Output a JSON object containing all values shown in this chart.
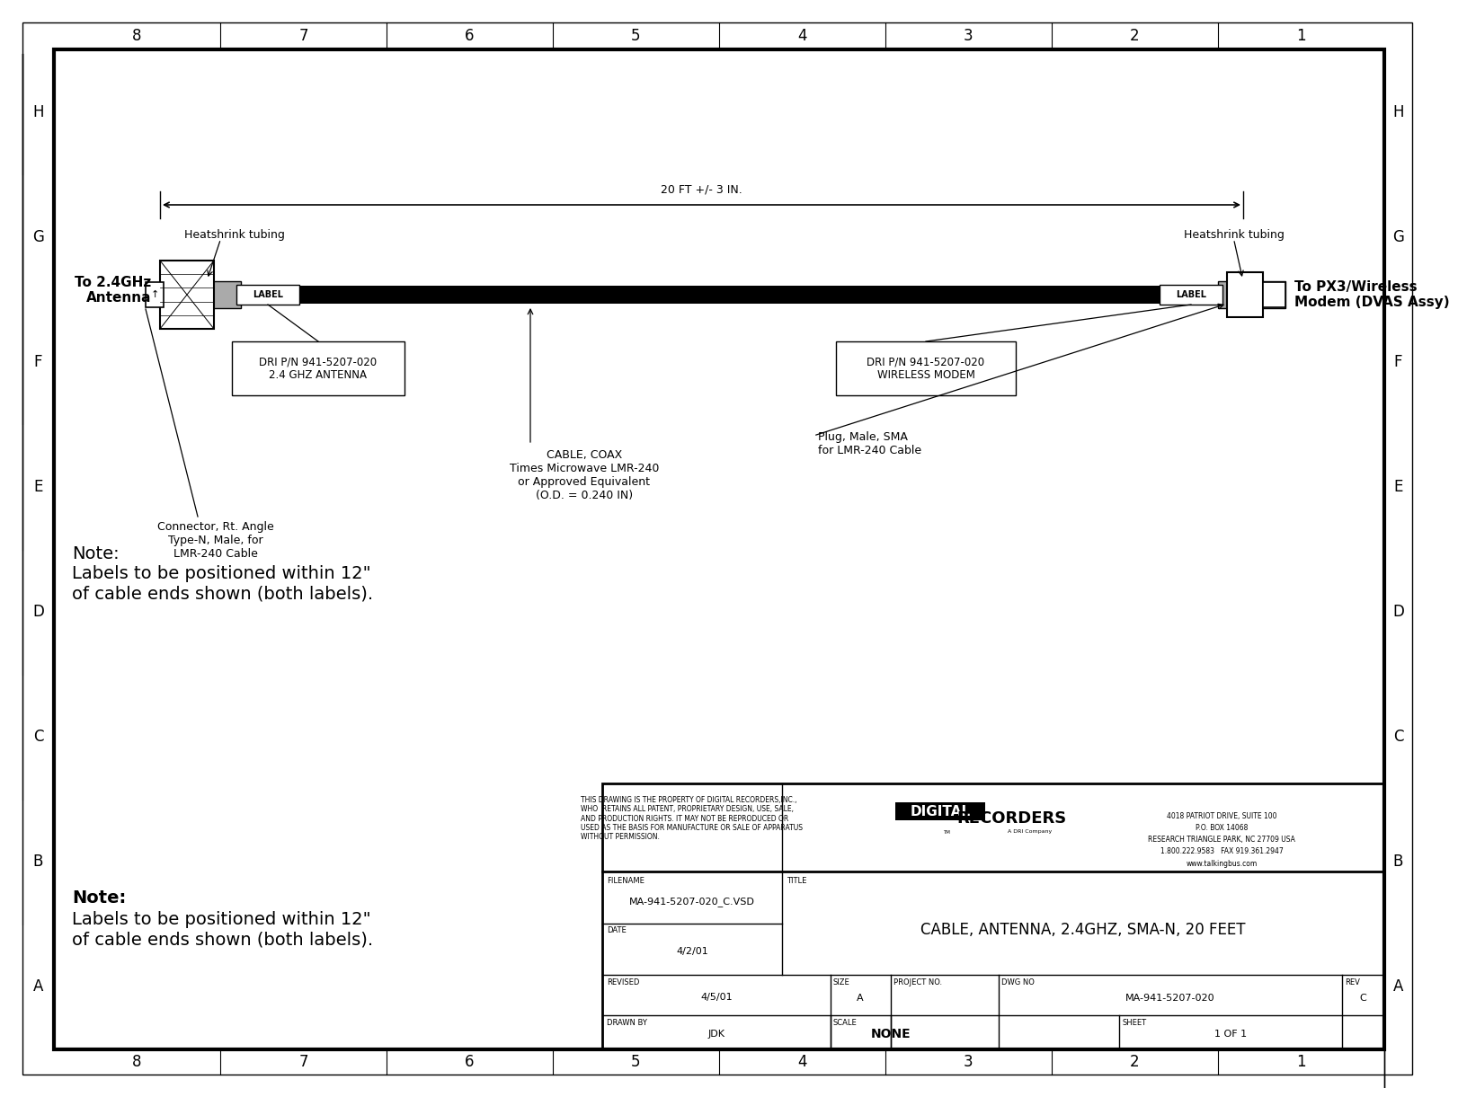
{
  "bg_color": "#ffffff",
  "col_labels": [
    "8",
    "7",
    "6",
    "5",
    "4",
    "3",
    "2",
    "1"
  ],
  "row_labels": [
    "H",
    "G",
    "F",
    "E",
    "D",
    "C",
    "B",
    "A"
  ],
  "title_block": {
    "disclaimer": "THIS DRAWING IS THE PROPERTY OF DIGITAL RECORDERS,INC.,\nWHO  RETAINS ALL PATENT, PROPRIETARY DESIGN, USE, SALE,\nAND PRODUCTION RIGHTS. IT MAY NOT BE REPRODUCED OR\nUSED AS THE BASIS FOR MANUFACTURE OR SALE OF APPARATUS\nWITHOUT PERMISSION.",
    "filename_label": "FILENAME",
    "filename_value": "MA-941-5207-020_C.VSD",
    "date_label": "DATE",
    "date_value": "4/2/01",
    "revised_label": "REVISED",
    "revised_value": "4/5/01",
    "drawn_label": "DRAWN BY",
    "drawn_value": "JDK",
    "title_label": "TITLE",
    "title_value": "CABLE, ANTENNA, 2.4GHZ, SMA-N, 20 FEET",
    "size_label": "SIZE",
    "size_value": "A",
    "project_label": "PROJECT NO.",
    "dwg_label": "DWG NO",
    "dwg_value": "MA-941-5207-020",
    "rev_label": "REV",
    "rev_value": "C",
    "scale_label": "SCALE",
    "scale_value": "NONE",
    "sheet_label": "SHEET",
    "sheet_value": "1 OF 1",
    "company_line1": "4018 PATRIOT DRIVE, SUITE 100",
    "company_line2": "P.O. BOX 14068",
    "company_line3": "RESEARCH TRIANGLE PARK, NC 27709 USA",
    "company_line4": "1.800.222.9583   FAX 919.361.2947",
    "company_line5": "www.talkingbus.com"
  },
  "note_text": "Note:\nLabels to be positioned within 12\"\nof cable ends shown (both labels).",
  "cable": {
    "dim_text": "20 FT +/- 3 IN.",
    "heatshrink_left_label": "Heatshrink tubing",
    "heatshrink_right_label": "Heatshrink tubing",
    "label_left_text": "LABEL",
    "label_right_text": "LABEL",
    "to_antenna_text": "To 2.4GHz\nAntenna",
    "to_modem_text": "To PX3/Wireless\nModem (DVAS Assy)",
    "dri_left": "DRI P/N 941-5207-020\n2.4 GHZ ANTENNA",
    "dri_right": "DRI P/N 941-5207-020\nWIRELESS MODEM",
    "cable_coax": "CABLE, COAX\nTimes Microwave LMR-240\nor Approved Equivalent\n(O.D. = 0.240 IN)",
    "plug_sma": "Plug, Male, SMA\nfor LMR-240 Cable",
    "connector_rt": "Connector, Rt. Angle\nType-N, Male, for\nLMR-240 Cable"
  }
}
